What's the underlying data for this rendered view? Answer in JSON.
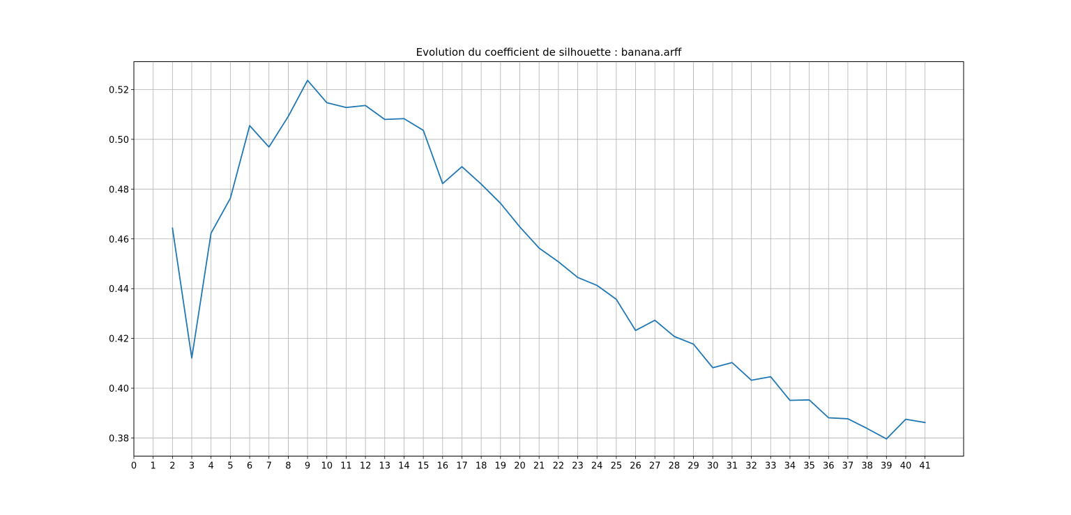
{
  "chart_data": {
    "type": "line",
    "title": "Evolution du coefficient de silhouette : banana.arff",
    "xlabel": "",
    "ylabel": "",
    "grid": true,
    "x_ticks": [
      0,
      1,
      2,
      3,
      4,
      5,
      6,
      7,
      8,
      9,
      10,
      11,
      12,
      13,
      14,
      15,
      16,
      17,
      18,
      19,
      20,
      21,
      22,
      23,
      24,
      25,
      26,
      27,
      28,
      29,
      30,
      31,
      32,
      33,
      34,
      35,
      36,
      37,
      38,
      39,
      40,
      41
    ],
    "y_ticks": [
      0.38,
      0.4,
      0.42,
      0.44,
      0.46,
      0.48,
      0.5,
      0.52
    ],
    "y_tick_labels": [
      "0.38",
      "0.40",
      "0.42",
      "0.44",
      "0.46",
      "0.48",
      "0.50",
      "0.52"
    ],
    "xlim": [
      0,
      43
    ],
    "ylim": [
      0.3727,
      0.5312
    ],
    "series": [
      {
        "color": "#1f77b4",
        "x": [
          2,
          3,
          4,
          5,
          6,
          7,
          8,
          9,
          10,
          11,
          12,
          13,
          14,
          15,
          16,
          17,
          18,
          19,
          20,
          21,
          22,
          23,
          24,
          25,
          26,
          27,
          28,
          29,
          30,
          31,
          32,
          33,
          34,
          35,
          36,
          37,
          38,
          39,
          40,
          41
        ],
        "values": [
          0.4643,
          0.4121,
          0.4623,
          0.4763,
          0.5055,
          0.4969,
          0.5092,
          0.5237,
          0.5147,
          0.5128,
          0.5136,
          0.508,
          0.5083,
          0.5036,
          0.4822,
          0.489,
          0.482,
          0.4743,
          0.4648,
          0.4563,
          0.4508,
          0.4445,
          0.4413,
          0.4357,
          0.4232,
          0.4273,
          0.4208,
          0.4177,
          0.4082,
          0.4103,
          0.4032,
          0.4046,
          0.3951,
          0.3953,
          0.3881,
          0.3877,
          0.3838,
          0.3796,
          0.3875,
          0.3862
        ]
      }
    ]
  }
}
